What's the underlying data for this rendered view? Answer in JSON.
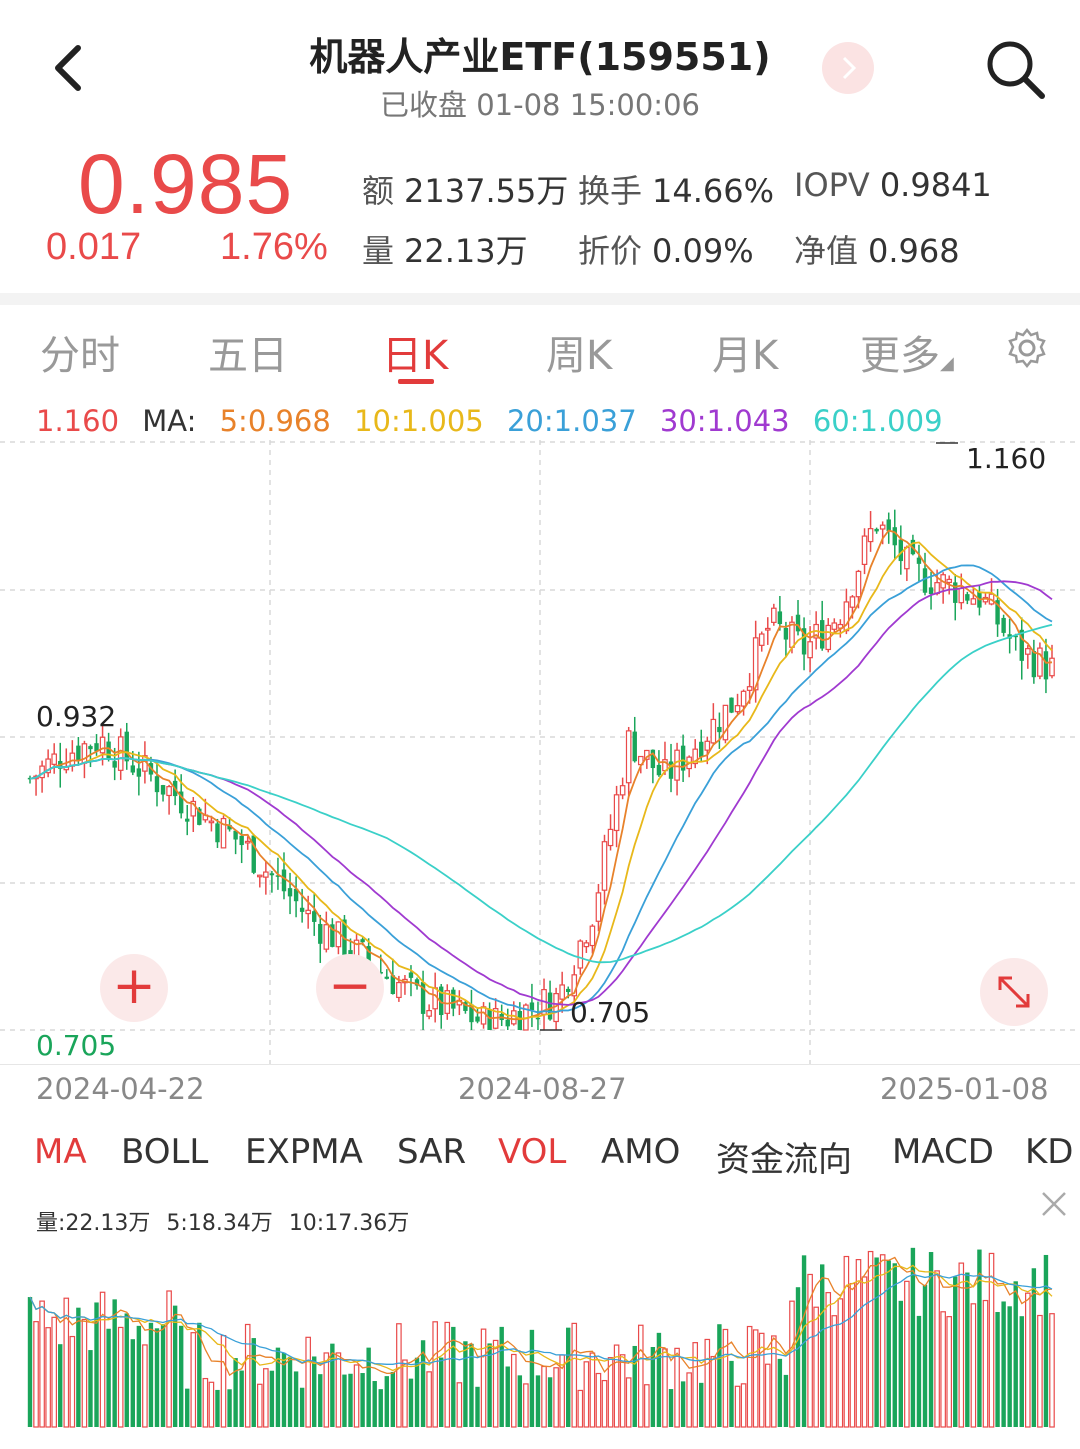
{
  "header": {
    "title": "机器人产业ETF(159551)",
    "subtitle": "已收盘 01-08 15:00:06"
  },
  "quote": {
    "price": "0.985",
    "change": "0.017",
    "change_pct": "1.76%",
    "stats": [
      {
        "key": "额",
        "value": "2137.55万"
      },
      {
        "key": "换手",
        "value": "14.66%"
      },
      {
        "key": "IOPV",
        "value": "0.9841"
      },
      {
        "key": "量",
        "value": "22.13万"
      },
      {
        "key": "折价",
        "value": "0.09%"
      },
      {
        "key": "净值",
        "value": "0.968"
      }
    ]
  },
  "tabs": [
    "分时",
    "五日",
    "日K",
    "周K",
    "月K",
    "更多"
  ],
  "active_tab": "日K",
  "ma_header": {
    "top_price": "1.160",
    "label": "MA:",
    "items": [
      {
        "text": "5:0.968",
        "color": "#e8822a"
      },
      {
        "text": "10:1.005",
        "color": "#e8b81a"
      },
      {
        "text": "20:1.037",
        "color": "#3aa0d8"
      },
      {
        "text": "30:1.043",
        "color": "#a03ad0"
      },
      {
        "text": "60:1.009",
        "color": "#3ad0c8"
      }
    ]
  },
  "chart_labels": {
    "high": "1.160",
    "low": "0.705",
    "left_mark": "0.932",
    "low_mark": "0.705",
    "bottom_price": "0.705"
  },
  "dates": [
    "2024-04-22",
    "2024-08-27",
    "2025-01-08"
  ],
  "indicators": [
    "MA",
    "BOLL",
    "EXPMA",
    "SAR",
    "VOL",
    "AMO",
    "资金流向",
    "MACD",
    "KD"
  ],
  "active_indicators": [
    "MA",
    "VOL"
  ],
  "volume": {
    "label": "量:",
    "value": "22.13万",
    "ma5_label": "5:",
    "ma5": "18.34万",
    "ma10_label": "10:",
    "ma10": "17.36万"
  },
  "colors": {
    "up": "#e94a4a",
    "down": "#1aa55a",
    "accent": "#e23b3b"
  },
  "chart_data": {
    "type": "candlestick",
    "ylim": [
      0.705,
      1.16
    ],
    "x": [
      "2024-04-22",
      "2024-08-27",
      "2025-01-08"
    ],
    "close_path": [
      0.9,
      0.92,
      0.93,
      0.91,
      0.89,
      0.87,
      0.85,
      0.82,
      0.79,
      0.77,
      0.75,
      0.73,
      0.72,
      0.71,
      0.72,
      0.73,
      0.8,
      0.93,
      0.9,
      0.93,
      0.96,
      1.02,
      1.0,
      1.03,
      1.1,
      1.06,
      1.05,
      1.04,
      1.0,
      0.985
    ]
  }
}
